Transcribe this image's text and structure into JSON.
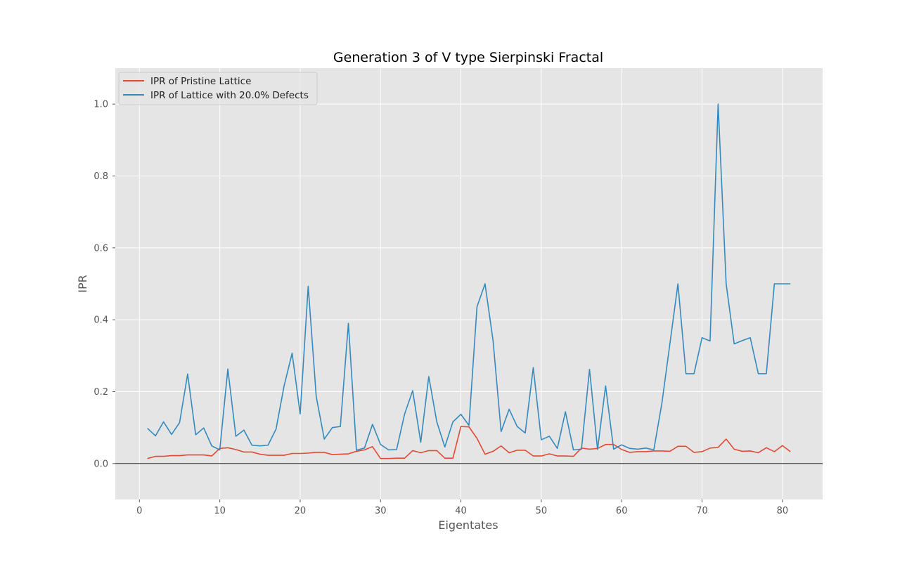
{
  "chart_data": {
    "type": "line",
    "title": "Generation 3 of V type Sierpinski Fractal",
    "xlabel": "Eigentates",
    "ylabel": "IPR",
    "xlim": [
      -3,
      85
    ],
    "ylim": [
      -0.1,
      1.1
    ],
    "xticks": [
      "0",
      "10",
      "20",
      "30",
      "40",
      "50",
      "60",
      "70",
      "80"
    ],
    "yticks": [
      "0.0",
      "0.2",
      "0.4",
      "0.6",
      "0.8",
      "1.0"
    ],
    "grid": true,
    "legend_position": "upper-left",
    "colors": {
      "background": "#e5e5e5",
      "grid": "#ffffff",
      "zero_line": "#000000",
      "pristine": "#e24a33",
      "defects": "#348abd"
    },
    "x": [
      1,
      2,
      3,
      4,
      5,
      6,
      7,
      8,
      9,
      10,
      11,
      12,
      13,
      14,
      15,
      16,
      17,
      18,
      19,
      20,
      21,
      22,
      23,
      24,
      25,
      26,
      27,
      28,
      29,
      30,
      31,
      32,
      33,
      34,
      35,
      36,
      37,
      38,
      39,
      40,
      41,
      42,
      43,
      44,
      45,
      46,
      47,
      48,
      49,
      50,
      51,
      52,
      53,
      54,
      55,
      56,
      57,
      58,
      59,
      60,
      61,
      62,
      63,
      64,
      65,
      66,
      67,
      68,
      69,
      70,
      71,
      72,
      73,
      74,
      75,
      76,
      77,
      78,
      79,
      80,
      81
    ],
    "series": [
      {
        "name": "IPR of Pristine Lattice",
        "color": "#e24a33",
        "values": [
          0.014,
          0.02,
          0.02,
          0.022,
          0.022,
          0.024,
          0.024,
          0.024,
          0.021,
          0.042,
          0.044,
          0.039,
          0.032,
          0.032,
          0.026,
          0.023,
          0.023,
          0.023,
          0.028,
          0.028,
          0.029,
          0.031,
          0.031,
          0.025,
          0.026,
          0.027,
          0.034,
          0.038,
          0.047,
          0.014,
          0.014,
          0.015,
          0.015,
          0.036,
          0.03,
          0.036,
          0.036,
          0.015,
          0.015,
          0.103,
          0.102,
          0.07,
          0.026,
          0.034,
          0.049,
          0.03,
          0.037,
          0.037,
          0.021,
          0.021,
          0.027,
          0.021,
          0.021,
          0.02,
          0.043,
          0.04,
          0.042,
          0.053,
          0.053,
          0.039,
          0.031,
          0.033,
          0.033,
          0.035,
          0.035,
          0.034,
          0.048,
          0.048,
          0.031,
          0.033,
          0.043,
          0.045,
          0.068,
          0.04,
          0.034,
          0.035,
          0.03,
          0.044,
          0.033,
          0.05,
          0.033
        ]
      },
      {
        "name": "IPR of Lattice with 20.0% Defects",
        "color": "#348abd",
        "values": [
          0.098,
          0.077,
          0.116,
          0.081,
          0.114,
          0.249,
          0.08,
          0.099,
          0.049,
          0.038,
          0.263,
          0.076,
          0.093,
          0.051,
          0.049,
          0.051,
          0.096,
          0.216,
          0.307,
          0.138,
          0.493,
          0.186,
          0.068,
          0.1,
          0.103,
          0.39,
          0.037,
          0.043,
          0.109,
          0.053,
          0.038,
          0.039,
          0.138,
          0.203,
          0.059,
          0.242,
          0.116,
          0.046,
          0.116,
          0.137,
          0.106,
          0.436,
          0.5,
          0.342,
          0.089,
          0.151,
          0.103,
          0.085,
          0.267,
          0.066,
          0.076,
          0.042,
          0.144,
          0.038,
          0.04,
          0.262,
          0.039,
          0.216,
          0.04,
          0.052,
          0.042,
          0.04,
          0.043,
          0.038,
          0.167,
          0.333,
          0.5,
          0.25,
          0.25,
          0.35,
          0.341,
          1.0,
          0.5,
          0.333,
          0.342,
          0.35,
          0.25,
          0.25,
          0.5,
          0.5,
          0.5
        ]
      }
    ]
  }
}
